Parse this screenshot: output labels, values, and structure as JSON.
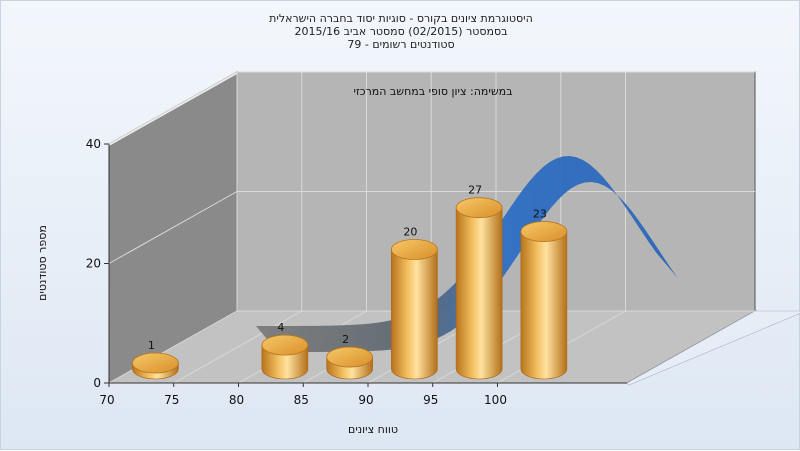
{
  "chart_data": {
    "type": "bar",
    "title_lines": [
      "היסטוגרמת ציונים בקורס - סוגיות יסוד בחברה הישראלית",
      "בסמסטר  (02/2015)  סמסטר אביב 2015/16",
      "סטודנטים רשומים - 79"
    ],
    "subtitle": "במשימה: ציון סופי במחשב המרכזי",
    "xlabel": "טווח ציונים",
    "ylabel": "מספר סטודנטים",
    "x_ticks": [
      "70",
      "75",
      "80",
      "85",
      "90",
      "95",
      "100"
    ],
    "y_ticks": [
      "0",
      "20",
      "40"
    ],
    "ylim": [
      0,
      40
    ],
    "bins": [
      70,
      80,
      85,
      90,
      95,
      100
    ],
    "values": [
      1,
      4,
      2,
      20,
      27,
      23
    ],
    "data_labels": [
      "1",
      "4",
      "2",
      "20",
      "27",
      "23"
    ],
    "series": [
      {
        "kind": "histogram-bars",
        "color": "#e8a43a"
      },
      {
        "kind": "distribution-curve",
        "color": "#2f6fc4"
      }
    ],
    "grid": true
  }
}
